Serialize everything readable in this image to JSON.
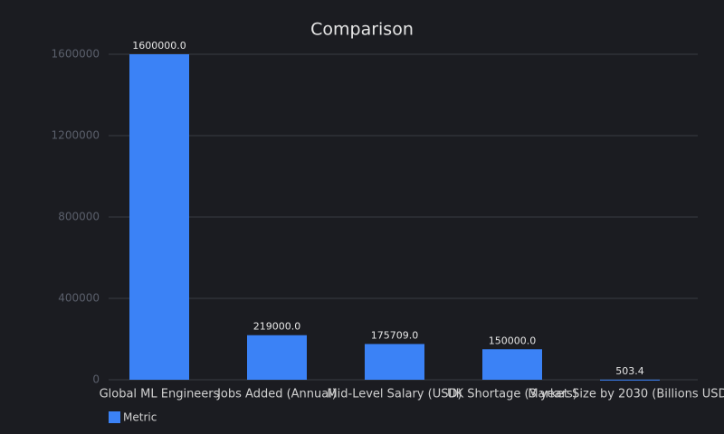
{
  "chart_data": {
    "type": "bar",
    "title": "Comparison",
    "categories": [
      "Global ML Engineers",
      "Jobs Added (Annual)",
      "Mid-Level Salary (USD)",
      "UK Shortage (3 years)",
      "Market Size by 2030 (Billions USD)"
    ],
    "series": [
      {
        "name": "Metric",
        "color": "#3b82f6",
        "values": [
          1600000,
          219000,
          175709,
          150000,
          503.4
        ],
        "value_labels": [
          "1600000.0",
          "219000.0",
          "175709.0",
          "150000.0",
          "503.4"
        ]
      }
    ],
    "ylim": [
      0,
      1600000
    ],
    "yticks": [
      0,
      400000,
      800000,
      1200000,
      1600000
    ],
    "grid": true,
    "legend": "bottom-left"
  }
}
